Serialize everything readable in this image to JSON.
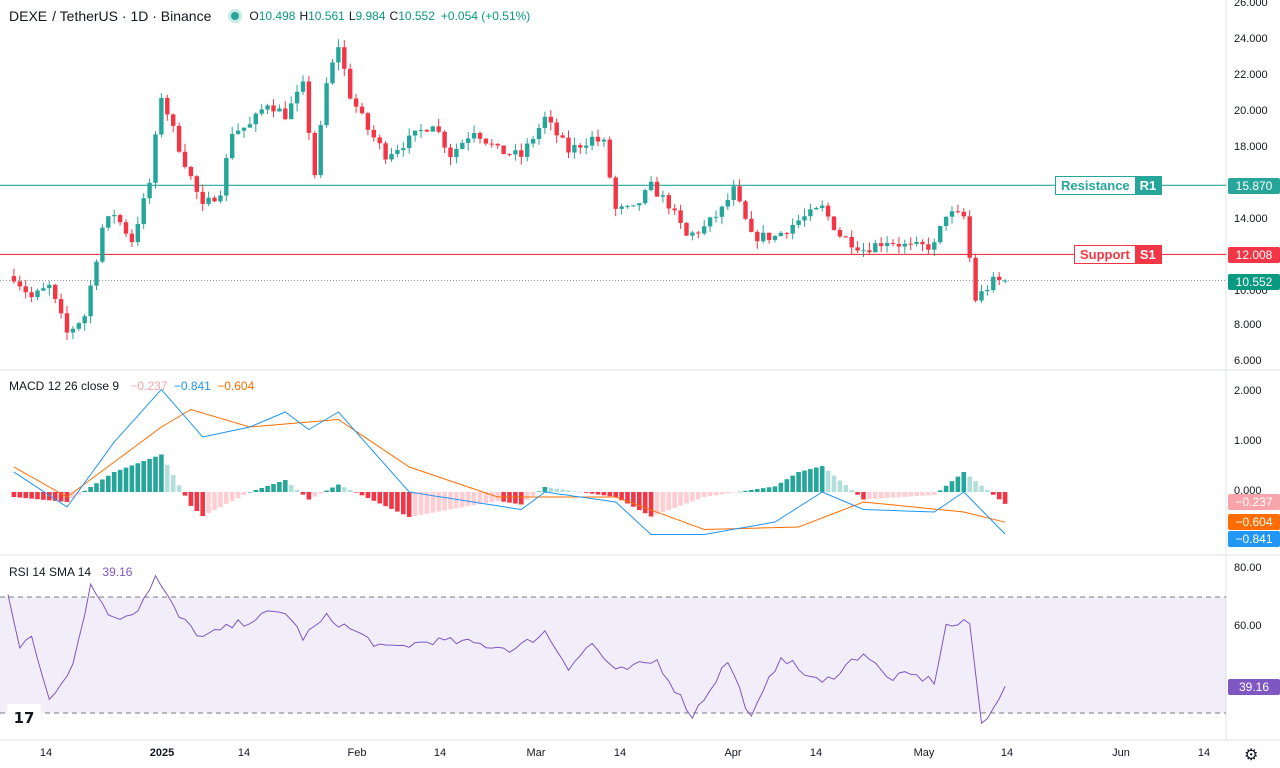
{
  "header": {
    "symbol": "DEXE",
    "pair": "/ TetherUS · 1D · Binance",
    "open_label": "O",
    "open": "10.498",
    "high_label": "H",
    "high": "10.561",
    "low_label": "L",
    "low": "9.984",
    "close_label": "C",
    "close": "10.552",
    "change": "+0.054 (+0.51%)"
  },
  "levels": {
    "resistance": {
      "label": "Resistance",
      "tag": "R1",
      "value": 15.87,
      "value_text": "15.870",
      "color": "#26a69a"
    },
    "support": {
      "label": "Support",
      "tag": "S1",
      "value": 12.008,
      "value_text": "12.008",
      "color": "#f23645"
    },
    "last_price": {
      "value": 10.552,
      "value_text": "10.552",
      "color": "#089981"
    }
  },
  "macd": {
    "title": "MACD",
    "params": "12 26 close 9",
    "hist_text": "−0.237",
    "macd_text": "−0.841",
    "signal_text": "−0.604",
    "colors": {
      "macd": "#2196f3",
      "signal": "#ff6d00",
      "hist_up": "#26a69a",
      "hist_down": "#f23645"
    }
  },
  "rsi": {
    "title": "RSI",
    "params": "14 SMA 14",
    "value_text": "39.16",
    "color": "#7e57c2",
    "upper_band": 70,
    "lower_band": 30
  },
  "price_axis": [
    "26.000",
    "24.000",
    "22.000",
    "20.000",
    "18.000",
    "14.000",
    "10.000",
    "8.000",
    "6.000"
  ],
  "macd_axis": [
    "2.000",
    "1.000",
    "0.000"
  ],
  "rsi_axis": [
    "80.00",
    "60.00"
  ],
  "time_axis": [
    "14",
    "2025",
    "14",
    "Feb",
    "14",
    "Mar",
    "14",
    "Apr",
    "14",
    "May",
    "14",
    "Jun",
    "14"
  ],
  "icons": {
    "logo": "tradingview-logo-icon",
    "settings": "gear-icon"
  },
  "logo_text": "17",
  "settings_glyph": "⚙",
  "chart_data": {
    "type": "candlestick",
    "title": "DEXE / TetherUS · 1D · Binance",
    "price_range": [
      6,
      26
    ],
    "keypoints_date_close": [
      [
        "2024-12-09",
        10.8
      ],
      [
        "2024-12-12",
        9.6
      ],
      [
        "2024-12-15",
        10.2
      ],
      [
        "2024-12-18",
        7.6
      ],
      [
        "2024-12-21",
        8.6
      ],
      [
        "2024-12-24",
        13.5
      ],
      [
        "2024-12-26",
        14.3
      ],
      [
        "2024-12-29",
        12.8
      ],
      [
        "2025-01-01",
        16.0
      ],
      [
        "2025-01-03",
        20.9
      ],
      [
        "2025-01-06",
        18.0
      ],
      [
        "2025-01-10",
        14.6
      ],
      [
        "2025-01-13",
        15.6
      ],
      [
        "2025-01-15",
        18.9
      ],
      [
        "2025-01-18",
        19.2
      ],
      [
        "2025-01-21",
        20.5
      ],
      [
        "2025-01-24",
        19.8
      ],
      [
        "2025-01-27",
        21.4
      ],
      [
        "2025-01-29",
        16.5
      ],
      [
        "2025-01-31",
        21.5
      ],
      [
        "2025-02-02",
        23.7
      ],
      [
        "2025-02-04",
        20.9
      ],
      [
        "2025-02-07",
        19.0
      ],
      [
        "2025-02-10",
        17.6
      ],
      [
        "2025-02-14",
        18.4
      ],
      [
        "2025-02-18",
        19.4
      ],
      [
        "2025-02-21",
        17.6
      ],
      [
        "2025-02-25",
        19.0
      ],
      [
        "2025-03-01",
        17.8
      ],
      [
        "2025-03-05",
        17.5
      ],
      [
        "2025-03-09",
        19.6
      ],
      [
        "2025-03-13",
        17.8
      ],
      [
        "2025-03-17",
        18.5
      ],
      [
        "2025-03-19",
        18.2
      ],
      [
        "2025-03-21",
        14.5
      ],
      [
        "2025-03-24",
        14.5
      ],
      [
        "2025-03-27",
        15.8
      ],
      [
        "2025-03-30",
        14.8
      ],
      [
        "2025-04-02",
        13.0
      ],
      [
        "2025-04-05",
        13.5
      ],
      [
        "2025-04-08",
        14.5
      ],
      [
        "2025-04-10",
        15.6
      ],
      [
        "2025-04-13",
        13.0
      ],
      [
        "2025-04-17",
        13.0
      ],
      [
        "2025-04-21",
        13.9
      ],
      [
        "2025-04-25",
        14.6
      ],
      [
        "2025-04-28",
        13.1
      ],
      [
        "2025-05-02",
        12.3
      ],
      [
        "2025-05-06",
        12.8
      ],
      [
        "2025-05-10",
        12.4
      ],
      [
        "2025-05-14",
        12.5
      ],
      [
        "2025-05-16",
        14.3
      ],
      [
        "2025-05-19",
        14.1
      ],
      [
        "2025-05-21",
        9.5
      ],
      [
        "2025-05-24",
        10.5
      ],
      [
        "2025-05-26",
        10.55
      ]
    ],
    "macd_keypoints": [
      [
        "2024-12-09",
        0.4
      ],
      [
        "2024-12-18",
        -0.3
      ],
      [
        "2024-12-26",
        1.0
      ],
      [
        "2025-01-03",
        2.05
      ],
      [
        "2025-01-10",
        1.1
      ],
      [
        "2025-01-18",
        1.3
      ],
      [
        "2025-01-24",
        1.6
      ],
      [
        "2025-01-28",
        1.25
      ],
      [
        "2025-02-02",
        1.6
      ],
      [
        "2025-02-14",
        0.0
      ],
      [
        "2025-03-05",
        -0.35
      ],
      [
        "2025-03-09",
        0.0
      ],
      [
        "2025-03-21",
        -0.2
      ],
      [
        "2025-03-27",
        -0.85
      ],
      [
        "2025-04-05",
        -0.85
      ],
      [
        "2025-04-17",
        -0.6
      ],
      [
        "2025-04-25",
        0.0
      ],
      [
        "2025-05-02",
        -0.35
      ],
      [
        "2025-05-14",
        -0.4
      ],
      [
        "2025-05-19",
        0.0
      ],
      [
        "2025-05-26",
        -0.841
      ]
    ],
    "signal_keypoints": [
      [
        "2024-12-09",
        0.5
      ],
      [
        "2024-12-18",
        -0.1
      ],
      [
        "2025-01-03",
        1.3
      ],
      [
        "2025-01-08",
        1.65
      ],
      [
        "2025-01-18",
        1.3
      ],
      [
        "2025-02-02",
        1.45
      ],
      [
        "2025-02-14",
        0.5
      ],
      [
        "2025-03-01",
        -0.1
      ],
      [
        "2025-03-21",
        -0.1
      ],
      [
        "2025-04-05",
        -0.75
      ],
      [
        "2025-04-21",
        -0.7
      ],
      [
        "2025-05-02",
        -0.2
      ],
      [
        "2025-05-19",
        -0.4
      ],
      [
        "2025-05-26",
        -0.604
      ]
    ],
    "rsi_keypoints": [
      [
        "2024-12-08",
        72
      ],
      [
        "2024-12-10",
        52
      ],
      [
        "2024-12-12",
        56
      ],
      [
        "2024-12-15",
        35
      ],
      [
        "2024-12-19",
        47
      ],
      [
        "2024-12-22",
        74
      ],
      [
        "2024-12-26",
        62
      ],
      [
        "2024-12-30",
        66
      ],
      [
        "2025-01-02",
        77
      ],
      [
        "2025-01-06",
        63
      ],
      [
        "2025-01-10",
        56
      ],
      [
        "2025-01-15",
        60
      ],
      [
        "2025-01-21",
        64
      ],
      [
        "2025-01-24",
        65
      ],
      [
        "2025-01-27",
        56
      ],
      [
        "2025-01-31",
        63
      ],
      [
        "2025-02-04",
        59
      ],
      [
        "2025-02-10",
        52
      ],
      [
        "2025-02-18",
        55
      ],
      [
        "2025-02-25",
        54
      ],
      [
        "2025-03-04",
        52
      ],
      [
        "2025-03-09",
        58
      ],
      [
        "2025-03-13",
        46
      ],
      [
        "2025-03-17",
        54
      ],
      [
        "2025-03-21",
        44
      ],
      [
        "2025-03-28",
        48
      ],
      [
        "2025-04-03",
        29
      ],
      [
        "2025-04-09",
        48
      ],
      [
        "2025-04-13",
        28
      ],
      [
        "2025-04-18",
        50
      ],
      [
        "2025-04-21",
        45
      ],
      [
        "2025-04-25",
        40
      ],
      [
        "2025-05-02",
        51
      ],
      [
        "2025-05-06",
        42
      ],
      [
        "2025-05-10",
        43
      ],
      [
        "2025-05-14",
        41
      ],
      [
        "2025-05-16",
        60
      ],
      [
        "2025-05-20",
        61
      ],
      [
        "2025-05-22",
        26
      ],
      [
        "2025-05-26",
        39.16
      ]
    ]
  }
}
